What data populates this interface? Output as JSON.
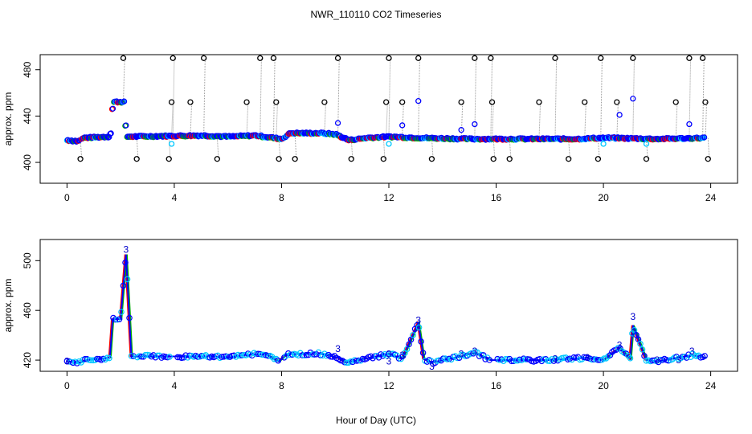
{
  "title": "NWR_110110  CO2 Timeseries",
  "xlabel": "Hour of Day (UTC)",
  "chart_data": [
    {
      "type": "scatter",
      "ylabel": "approx. ppm",
      "xlim": [
        -1,
        25
      ],
      "ylim": [
        382,
        493
      ],
      "x_ticks": [
        0,
        4,
        8,
        12,
        16,
        20,
        24
      ],
      "y_ticks": [
        400,
        440,
        480
      ],
      "grid": false,
      "series": [
        {
          "color": "#0000ff",
          "baseline": [
            [
              0,
              419
            ],
            [
              0.4,
              418
            ],
            [
              0.6,
              421
            ],
            [
              1.6,
              422
            ],
            [
              1.7,
              452
            ],
            [
              2.1,
              452
            ],
            [
              2.2,
              422
            ],
            [
              5,
              423
            ],
            [
              6,
              422
            ],
            [
              7,
              423
            ],
            [
              8,
              420
            ],
            [
              8.3,
              425
            ],
            [
              9.5,
              425
            ],
            [
              10,
              424
            ],
            [
              10.5,
              419
            ],
            [
              11.2,
              421
            ],
            [
              12,
              422
            ],
            [
              13,
              421
            ],
            [
              15,
              420
            ],
            [
              17,
              420
            ],
            [
              19,
              420
            ],
            [
              20,
              421
            ],
            [
              22,
              420
            ],
            [
              24,
              421
            ]
          ]
        },
        {
          "color": "#000000",
          "spikes": [
            [
              0.5,
              403
            ],
            [
              2.1,
              490
            ],
            [
              2.6,
              403
            ],
            [
              3.8,
              403
            ],
            [
              3.9,
              452
            ],
            [
              3.95,
              490
            ],
            [
              4.6,
              452
            ],
            [
              5.1,
              490
            ],
            [
              5.6,
              403
            ],
            [
              6.7,
              452
            ],
            [
              7.2,
              490
            ],
            [
              7.7,
              490
            ],
            [
              7.8,
              452
            ],
            [
              7.9,
              403
            ],
            [
              8.5,
              403
            ],
            [
              9.6,
              452
            ],
            [
              10.1,
              490
            ],
            [
              10.6,
              403
            ],
            [
              11.8,
              403
            ],
            [
              11.9,
              452
            ],
            [
              12.0,
              490
            ],
            [
              12.5,
              452
            ],
            [
              13.1,
              490
            ],
            [
              13.6,
              403
            ],
            [
              14.7,
              452
            ],
            [
              15.2,
              490
            ],
            [
              15.8,
              490
            ],
            [
              15.85,
              452
            ],
            [
              15.9,
              403
            ],
            [
              16.5,
              403
            ],
            [
              17.6,
              452
            ],
            [
              18.2,
              490
            ],
            [
              18.7,
              403
            ],
            [
              19.3,
              452
            ],
            [
              19.8,
              403
            ],
            [
              19.9,
              490
            ],
            [
              20.5,
              452
            ],
            [
              21.1,
              490
            ],
            [
              21.6,
              403
            ],
            [
              22.7,
              452
            ],
            [
              23.2,
              490
            ],
            [
              23.7,
              490
            ],
            [
              23.8,
              452
            ],
            [
              23.9,
              403
            ]
          ]
        },
        {
          "color": "#0000ff",
          "points": [
            [
              10.1,
              434
            ],
            [
              12.5,
              432
            ],
            [
              13.1,
              453
            ],
            [
              14.7,
              428
            ],
            [
              15.2,
              433
            ],
            [
              20.6,
              441
            ],
            [
              21.1,
              455
            ],
            [
              23.2,
              433
            ]
          ]
        },
        {
          "color": "#00c8ff",
          "points": [
            [
              3.9,
              416
            ],
            [
              12.0,
              416
            ],
            [
              20.0,
              416
            ],
            [
              21.6,
              416
            ]
          ]
        }
      ]
    },
    {
      "type": "line",
      "ylabel": "approx. ppm",
      "xlim": [
        -1,
        25
      ],
      "ylim": [
        411,
        517
      ],
      "x_ticks": [
        0,
        4,
        8,
        12,
        16,
        20,
        24
      ],
      "y_ticks": [
        420,
        460,
        500
      ],
      "grid": false,
      "marker_label": "3",
      "series": [
        {
          "color": "#0000ff",
          "points": [
            [
              0,
              419
            ],
            [
              0.5,
              418
            ],
            [
              0.7,
              420
            ],
            [
              1.6,
              422
            ],
            [
              1.7,
              453
            ],
            [
              2.0,
              453
            ],
            [
              2.2,
              505
            ],
            [
              2.4,
              423
            ],
            [
              3.9,
              423
            ],
            [
              4.1,
              423
            ],
            [
              5.5,
              423
            ],
            [
              6.0,
              422
            ],
            [
              6.6,
              424
            ],
            [
              7.4,
              425
            ],
            [
              7.9,
              419
            ],
            [
              8.2,
              425
            ],
            [
              9.5,
              425
            ],
            [
              10.1,
              422
            ],
            [
              10.4,
              418
            ],
            [
              11.3,
              422
            ],
            [
              12.0,
              425
            ],
            [
              12.5,
              421
            ],
            [
              13.1,
              450
            ],
            [
              13.3,
              421
            ],
            [
              13.6,
              418
            ],
            [
              14.7,
              423
            ],
            [
              15.2,
              426
            ],
            [
              15.8,
              420
            ],
            [
              16.0,
              420
            ],
            [
              18.0,
              420
            ],
            [
              19.4,
              422
            ],
            [
              20.0,
              420
            ],
            [
              20.6,
              430
            ],
            [
              21.0,
              421
            ],
            [
              21.1,
              448
            ],
            [
              21.6,
              420
            ],
            [
              22.0,
              419
            ],
            [
              23.3,
              424
            ],
            [
              23.8,
              422
            ]
          ]
        }
      ],
      "gaps": [
        [
          1.6,
          1.7
        ],
        [
          2.5,
          2.6
        ],
        [
          3.9,
          4.1
        ],
        [
          7.9,
          8.1
        ],
        [
          15.8,
          16.0
        ]
      ]
    }
  ]
}
